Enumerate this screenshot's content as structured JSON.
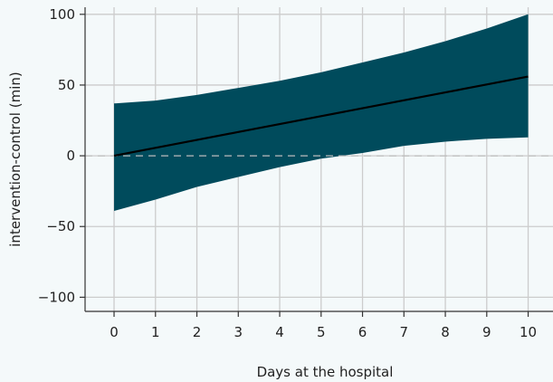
{
  "chart_data": {
    "type": "line",
    "title": "",
    "xlabel": "Days at the hospital",
    "ylabel": "intervention-control (min)",
    "x": [
      0,
      1,
      2,
      3,
      4,
      5,
      6,
      7,
      8,
      9,
      10
    ],
    "xticks": [
      "0",
      "1",
      "2",
      "3",
      "4",
      "5",
      "6",
      "7",
      "8",
      "9",
      "10"
    ],
    "yticks": [
      "-100",
      "-50",
      "0",
      "50",
      "100"
    ],
    "xlim": [
      -0.7,
      10.6
    ],
    "ylim": [
      -110,
      105
    ],
    "grid": true,
    "reference_line": {
      "y": 0,
      "style": "dashed"
    },
    "series": [
      {
        "kind": "line",
        "values": [
          0,
          5.6,
          11.2,
          16.8,
          22.4,
          28,
          33.6,
          39.2,
          44.8,
          50.4,
          56
        ]
      },
      {
        "kind": "band",
        "upper": [
          37,
          39,
          43,
          48,
          53,
          59,
          66,
          73,
          81,
          90,
          100
        ],
        "lower": [
          -39,
          -31,
          -22,
          -15,
          -8,
          -2,
          2,
          7,
          10,
          12,
          13
        ]
      }
    ],
    "colors": {
      "background": "#f4f9fa",
      "band": "#004b5c",
      "line": "#000000",
      "grid": "#cccccc",
      "reference": "#bbbbbb",
      "axis": "#333333"
    }
  }
}
